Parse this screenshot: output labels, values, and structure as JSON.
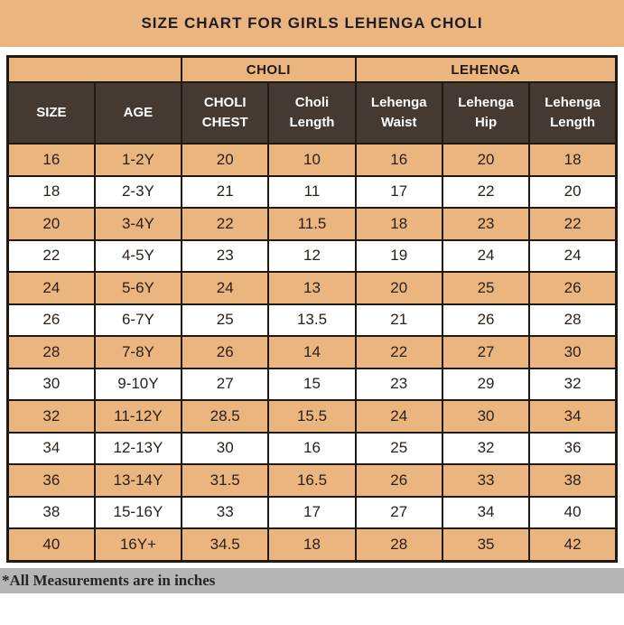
{
  "title": "SIZE CHART FOR GIRLS LEHENGA CHOLI",
  "footnote": "*All Measurements are in inches",
  "colors": {
    "tan": "#EAB57E",
    "header_brown": "#453A31",
    "border": "#1F1912",
    "footer_gray": "#B5B5B5",
    "header_text": "#FFFFFF",
    "body_text": "#2A1F18"
  },
  "chart_data": {
    "type": "table",
    "title": "SIZE CHART FOR GIRLS LEHENGA CHOLI",
    "column_groups": [
      {
        "label": "",
        "span": 2
      },
      {
        "label": "CHOLI",
        "span": 2
      },
      {
        "label": "LEHENGA",
        "span": 3
      }
    ],
    "columns": [
      "SIZE",
      "AGE",
      "CHOLI CHEST",
      "Choli Length",
      "Lehenga Waist",
      "Lehenga Hip",
      "Lehenga Length"
    ],
    "rows": [
      [
        "16",
        "1-2Y",
        "20",
        "10",
        "16",
        "20",
        "18"
      ],
      [
        "18",
        "2-3Y",
        "21",
        "11",
        "17",
        "22",
        "20"
      ],
      [
        "20",
        "3-4Y",
        "22",
        "11.5",
        "18",
        "23",
        "22"
      ],
      [
        "22",
        "4-5Y",
        "23",
        "12",
        "19",
        "24",
        "24"
      ],
      [
        "24",
        "5-6Y",
        "24",
        "13",
        "20",
        "25",
        "26"
      ],
      [
        "26",
        "6-7Y",
        "25",
        "13.5",
        "21",
        "26",
        "28"
      ],
      [
        "28",
        "7-8Y",
        "26",
        "14",
        "22",
        "27",
        "30"
      ],
      [
        "30",
        "9-10Y",
        "27",
        "15",
        "23",
        "29",
        "32"
      ],
      [
        "32",
        "11-12Y",
        "28.5",
        "15.5",
        "24",
        "30",
        "34"
      ],
      [
        "34",
        "12-13Y",
        "30",
        "16",
        "25",
        "32",
        "36"
      ],
      [
        "36",
        "13-14Y",
        "31.5",
        "16.5",
        "26",
        "33",
        "38"
      ],
      [
        "38",
        "15-16Y",
        "33",
        "17",
        "27",
        "34",
        "40"
      ],
      [
        "40",
        "16Y+",
        "34.5",
        "18",
        "28",
        "35",
        "42"
      ]
    ],
    "units": "inches",
    "row_stripe_colors": [
      "#EAB57E",
      "#FFFFFF"
    ]
  }
}
